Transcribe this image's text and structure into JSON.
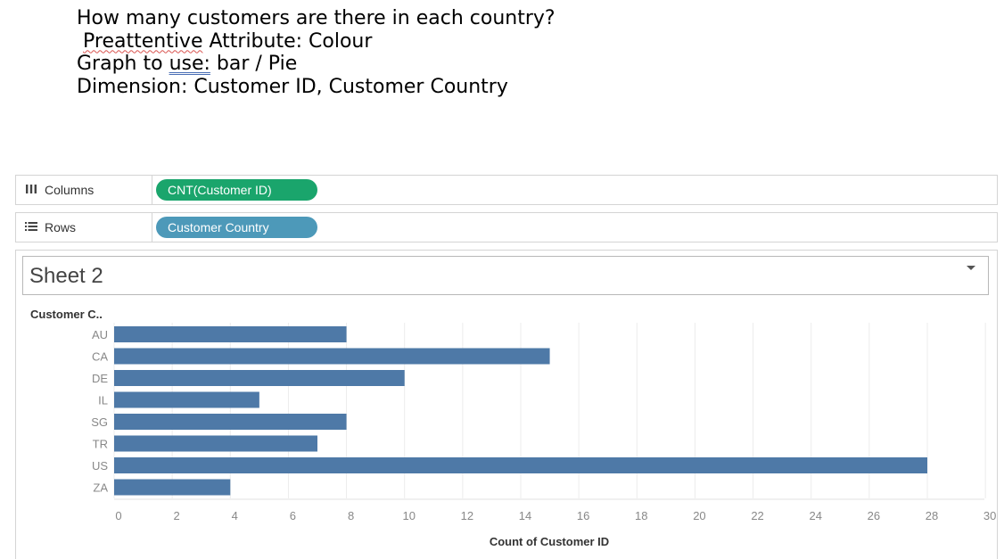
{
  "notes": {
    "line1": "How many customers are there in each country?",
    "line2_prefix": " ",
    "line2_word": "Preattentive",
    "line2_rest": " Attribute: Colour",
    "line3_prefix": "Graph to ",
    "line3_word": "use:",
    "line3_rest": " bar / Pie",
    "line4": "Dimension: Customer ID, Customer Country"
  },
  "shelves": {
    "columns": {
      "label": "Columns",
      "icon": "columns-icon",
      "pill": "CNT(Customer ID)",
      "pill_color": "#1aa56c"
    },
    "rows": {
      "label": "Rows",
      "icon": "rows-icon",
      "pill": "Customer Country",
      "pill_color": "#4d99b9"
    }
  },
  "sheet": {
    "title": "Sheet 2"
  },
  "chart_data": {
    "type": "bar",
    "orientation": "horizontal",
    "row_header": "Customer C..",
    "categories": [
      "AU",
      "CA",
      "DE",
      "IL",
      "SG",
      "TR",
      "US",
      "ZA"
    ],
    "values": [
      8,
      15,
      10,
      5,
      8,
      7,
      28,
      4
    ],
    "xlabel": "Count of Customer ID",
    "xlim": [
      0,
      30
    ],
    "xticks": [
      0,
      2,
      4,
      6,
      8,
      10,
      12,
      14,
      16,
      18,
      20,
      22,
      24,
      26,
      28,
      30
    ],
    "bar_color": "#4e79a7",
    "grid": "vertical",
    "legend": "none"
  }
}
